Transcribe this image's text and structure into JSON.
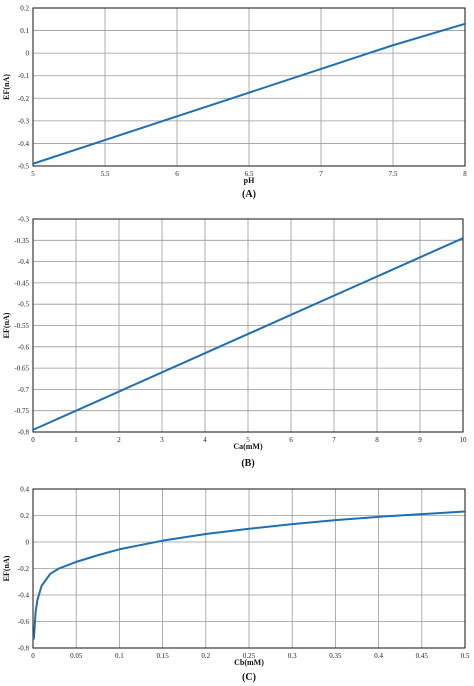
{
  "colors": {
    "line": "#1f6fb4",
    "grid": "#9a9a9a",
    "frame": "#111111",
    "background": "#ffffff"
  },
  "chart_data": [
    {
      "type": "line",
      "panel_label": "(A)",
      "xlabel": "pH",
      "ylabel": "EF(nA)",
      "xlim": [
        5,
        8
      ],
      "ylim": [
        -0.5,
        0.2
      ],
      "xticks": [
        5,
        5.5,
        6,
        6.5,
        7,
        7.5,
        8
      ],
      "xtick_labels": [
        "5",
        "5.5",
        "6",
        "6.5",
        "7",
        "7.5",
        "8"
      ],
      "yticks": [
        -0.5,
        -0.4,
        -0.3,
        -0.2,
        -0.1,
        0,
        0.1,
        0.2
      ],
      "ytick_labels": [
        "-0.5",
        "-0.4",
        "-0.3",
        "-0.2",
        "-0.1",
        "0",
        "0.1",
        "0.2"
      ],
      "grid": true,
      "series": [
        {
          "x": [
            5,
            5.5,
            6,
            6.5,
            7,
            7.5,
            8
          ],
          "y": [
            -0.49,
            -0.385,
            -0.28,
            -0.175,
            -0.07,
            0.035,
            0.13
          ]
        }
      ]
    },
    {
      "type": "line",
      "panel_label": "(B)",
      "xlabel": "Ca(mM)",
      "ylabel": "EF(nA)",
      "xlim": [
        0,
        10
      ],
      "ylim": [
        -0.8,
        -0.3
      ],
      "xticks": [
        0,
        1,
        2,
        3,
        4,
        5,
        6,
        7,
        8,
        9,
        10
      ],
      "xtick_labels": [
        "0",
        "1",
        "2",
        "3",
        "4",
        "5",
        "6",
        "7",
        "8",
        "9",
        "10"
      ],
      "yticks": [
        -0.8,
        -0.75,
        -0.7,
        -0.65,
        -0.6,
        -0.55,
        -0.5,
        -0.45,
        -0.4,
        -0.35,
        -0.3
      ],
      "ytick_labels": [
        "-0.8",
        "-0.75",
        "-0.7",
        "-0.65",
        "-0.6",
        "-0.55",
        "-0.5",
        "-0.45",
        "-0.4",
        "-0.35",
        "-0.3"
      ],
      "grid": true,
      "series": [
        {
          "x": [
            0,
            2,
            4,
            6,
            8,
            10
          ],
          "y": [
            -0.795,
            -0.705,
            -0.615,
            -0.525,
            -0.435,
            -0.345
          ]
        }
      ]
    },
    {
      "type": "line",
      "panel_label": "(C)",
      "xlabel": "Cb(mM)",
      "ylabel": "EF(nA)",
      "xlim": [
        0,
        0.5
      ],
      "ylim": [
        -0.8,
        0.4
      ],
      "xticks": [
        0,
        0.05,
        0.1,
        0.15,
        0.2,
        0.25,
        0.3,
        0.35,
        0.4,
        0.45,
        0.5
      ],
      "xtick_labels": [
        "0",
        "0.05",
        "0.1",
        "0.15",
        "0.2",
        "0.25",
        "0.3",
        "0.35",
        "0.4",
        "0.45",
        "0.5"
      ],
      "yticks": [
        -0.8,
        -0.6,
        -0.4,
        -0.2,
        0,
        0.2,
        0.4
      ],
      "ytick_labels": [
        "-0.8",
        "-0.6",
        "-0.4",
        "-0.2",
        "0",
        "0.2",
        "0.4"
      ],
      "grid": true,
      "series": [
        {
          "x": [
            0.001,
            0.003,
            0.005,
            0.01,
            0.02,
            0.03,
            0.05,
            0.075,
            0.1,
            0.15,
            0.2,
            0.25,
            0.3,
            0.35,
            0.4,
            0.45,
            0.5
          ],
          "y": [
            -0.73,
            -0.53,
            -0.44,
            -0.33,
            -0.24,
            -0.2,
            -0.15,
            -0.1,
            -0.055,
            0.01,
            0.06,
            0.1,
            0.135,
            0.165,
            0.19,
            0.21,
            0.23
          ]
        }
      ]
    }
  ]
}
